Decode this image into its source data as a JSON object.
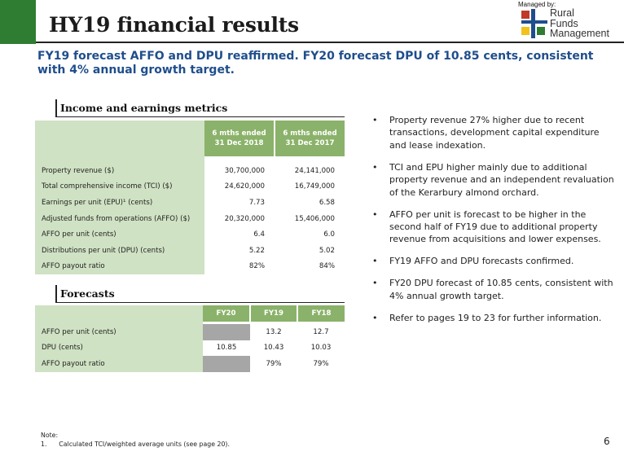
{
  "header": {
    "title": "HY19 financial results",
    "logo": {
      "managed_by": "Managed by:",
      "line1": "Rural",
      "line2": "Funds",
      "line3": "Management",
      "colors": [
        "#c0392b",
        "#1f4e8c",
        "#f2c21b",
        "#2e7d32"
      ]
    },
    "accent": "#2e7d32"
  },
  "subtitle": "FY19 forecast AFFO and DPU reaffirmed. FY20 forecast DPU of 10.85 cents, consistent with 4% annual growth target.",
  "income": {
    "heading": "Income and earnings metrics",
    "columns": [
      "6 mths ended\n31 Dec 2018",
      "6 mths ended\n31 Dec 2017"
    ],
    "rows": [
      {
        "label": "Property revenue ($)",
        "v1": "30,700,000",
        "v2": "24,141,000"
      },
      {
        "label": "Total comprehensive income (TCI) ($)",
        "v1": "24,620,000",
        "v2": "16,749,000"
      },
      {
        "label": "Earnings per unit (EPU)¹ (cents)",
        "v1": "7.73",
        "v2": "6.58"
      },
      {
        "label": "Adjusted funds from operations (AFFO) ($)",
        "v1": "20,320,000",
        "v2": "15,406,000"
      },
      {
        "label": "AFFO per unit (cents)",
        "v1": "6.4",
        "v2": "6.0"
      },
      {
        "label": "Distributions per unit (DPU) (cents)",
        "v1": "5.22",
        "v2": "5.02"
      },
      {
        "label": "AFFO payout ratio",
        "v1": "82%",
        "v2": "84%"
      }
    ]
  },
  "forecasts": {
    "heading": "Forecasts",
    "columns": [
      "FY20",
      "FY19",
      "FY18"
    ],
    "rows": [
      {
        "label": "AFFO per unit (cents)",
        "fy20": "",
        "fy19": "13.2",
        "fy18": "12.7"
      },
      {
        "label": "DPU (cents)",
        "fy20": "10.85",
        "fy19": "10.43",
        "fy18": "10.03"
      },
      {
        "label": "AFFO payout ratio",
        "fy20": "",
        "fy19": "79%",
        "fy18": "79%"
      }
    ]
  },
  "bullets": [
    "Property revenue 27% higher due to recent transactions, development capital expenditure and lease indexation.",
    "TCI and EPU higher mainly due to additional property revenue and an independent revaluation of the Kerarbury almond orchard.",
    "AFFO per unit is forecast to be higher in the second half of FY19 due to additional property revenue from acquisitions and lower expenses.",
    "FY19 AFFO and DPU forecasts confirmed.",
    "FY20 DPU forecast of 10.85 cents, consistent with 4% annual growth target.",
    "Refer to pages 19 to 23 for further information."
  ],
  "footer": {
    "note_label": "Note:",
    "note_text": "1.      Calculated TCI/weighted average units (see page 20).",
    "page_number": "6"
  }
}
